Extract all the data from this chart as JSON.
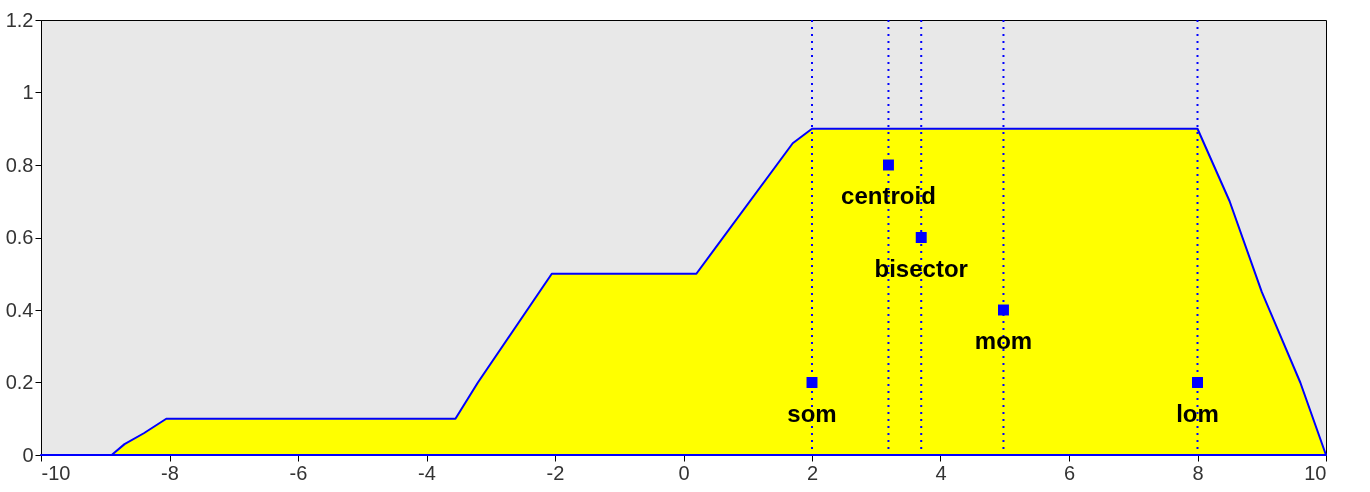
{
  "chart_data": {
    "type": "area",
    "series": [
      {
        "color": "#ffff00",
        "x": [
          -10,
          -8.9,
          -8.7,
          -8.4,
          -8.05,
          -3.55,
          -3.2,
          -2.05,
          0.2,
          1.7,
          2.0,
          8.0,
          8.5,
          9.0,
          9.6,
          10
        ],
        "values": [
          0,
          0,
          0.03,
          0.06,
          0.1,
          0.1,
          0.2,
          0.5,
          0.5,
          0.86,
          0.9,
          0.9,
          0.7,
          0.45,
          0.2,
          0
        ]
      },
      {
        "type": "scatter",
        "color": "#0000ff",
        "marker": "square",
        "x": [
          3.19,
          3.7,
          4.98,
          2.0,
          8.0
        ],
        "values": [
          0.8,
          0.6,
          0.4,
          0.2,
          0.2
        ]
      }
    ],
    "xlim": [
      -10,
      10
    ],
    "xticks": [
      -10,
      -8,
      -6,
      -4,
      -2,
      0,
      2,
      4,
      6,
      8,
      10
    ],
    "ylim": [
      0,
      1.2
    ],
    "yticks": [
      0,
      0.2,
      0.4,
      0.6,
      0.8,
      1,
      1.2
    ],
    "grid": false,
    "ref_lines": [
      {
        "axis": "x",
        "value": 2.0,
        "color": "#0000ff",
        "line_style": "dotted"
      },
      {
        "axis": "x",
        "value": 3.19,
        "color": "#0000ff",
        "line_style": "dotted"
      },
      {
        "axis": "x",
        "value": 3.7,
        "color": "#0000ff",
        "line_style": "dotted"
      },
      {
        "axis": "x",
        "value": 4.98,
        "color": "#0000ff",
        "line_style": "dotted"
      },
      {
        "axis": "x",
        "value": 8.0,
        "color": "#0000ff",
        "line_style": "dotted"
      }
    ],
    "annotations": [
      {
        "text": "centroid",
        "x": 3.19,
        "y": 0.8
      },
      {
        "text": "bisector",
        "x": 3.7,
        "y": 0.6
      },
      {
        "text": "mom",
        "x": 4.98,
        "y": 0.4
      },
      {
        "text": "som",
        "x": 2.0,
        "y": 0.2
      },
      {
        "text": "lom",
        "x": 8.0,
        "y": 0.2
      }
    ]
  }
}
